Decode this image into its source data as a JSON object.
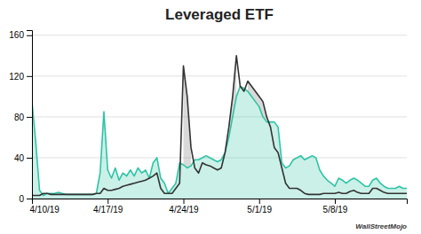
{
  "chart_data": {
    "type": "area",
    "title": "Leveraged ETF",
    "annotations": [
      "WallStreetMojo"
    ],
    "x": [
      0,
      1,
      2,
      3,
      4,
      5,
      6,
      7,
      8,
      9,
      10,
      11,
      12,
      13,
      14,
      15,
      16,
      17,
      18,
      19,
      20,
      21,
      22,
      23,
      24,
      25,
      26,
      27,
      28,
      29,
      30,
      31,
      32,
      33,
      34,
      35,
      36,
      37,
      38,
      39,
      40,
      41,
      42,
      43,
      44,
      45,
      46,
      47,
      48,
      49,
      50,
      51,
      52,
      53,
      54,
      55,
      56,
      57,
      58,
      59,
      60,
      61,
      62,
      63,
      64,
      65,
      66,
      67,
      68,
      69,
      70,
      71,
      72,
      73,
      74,
      75,
      76,
      77,
      78,
      79,
      80,
      81,
      82,
      83,
      84,
      85,
      86,
      87,
      88,
      89,
      90,
      91,
      92,
      93,
      94,
      95,
      96,
      97,
      98,
      99
    ],
    "xlim": [
      0,
      99
    ],
    "xticks": [
      {
        "value": 0,
        "label": "4/10/19"
      },
      {
        "value": 20,
        "label": "4/17/19"
      },
      {
        "value": 40,
        "label": "4/24/19"
      },
      {
        "value": 60,
        "label": "5/1/19"
      },
      {
        "value": 80,
        "label": "5/8/19"
      }
    ],
    "ylim": [
      0,
      165
    ],
    "yticks": [
      0,
      40,
      80,
      120,
      160
    ],
    "grid": true,
    "series": [
      {
        "type": "area",
        "color": "#2ec4a5",
        "values": [
          95,
          55,
          8,
          3,
          5,
          5,
          5,
          6,
          5,
          4,
          4,
          4,
          4,
          4,
          4,
          4,
          4,
          5,
          25,
          85,
          28,
          20,
          30,
          18,
          25,
          22,
          28,
          22,
          30,
          25,
          28,
          20,
          35,
          40,
          20,
          15,
          5,
          10,
          15,
          35,
          33,
          30,
          32,
          38,
          38,
          40,
          42,
          40,
          38,
          36,
          38,
          45,
          60,
          80,
          100,
          110,
          108,
          105,
          100,
          95,
          90,
          80,
          75,
          75,
          75,
          70,
          35,
          30,
          32,
          38,
          40,
          42,
          38,
          40,
          42,
          40,
          28,
          22,
          18,
          15,
          12,
          20,
          18,
          15,
          18,
          20,
          18,
          15,
          12,
          12,
          18,
          20,
          15,
          12,
          10,
          10,
          10,
          12,
          10,
          10
        ]
      },
      {
        "type": "line",
        "color": "#333333",
        "values": [
          3,
          3,
          3,
          5,
          5,
          4,
          4,
          4,
          4,
          4,
          4,
          4,
          4,
          4,
          4,
          4,
          4,
          5,
          5,
          10,
          8,
          8,
          9,
          10,
          12,
          13,
          14,
          15,
          16,
          17,
          18,
          20,
          22,
          25,
          10,
          5,
          5,
          5,
          10,
          15,
          130,
          100,
          50,
          30,
          25,
          35,
          33,
          32,
          30,
          28,
          30,
          45,
          70,
          100,
          140,
          110,
          105,
          115,
          110,
          105,
          100,
          95,
          80,
          70,
          50,
          45,
          30,
          15,
          10,
          10,
          10,
          8,
          5,
          4,
          4,
          4,
          4,
          5,
          5,
          5,
          5,
          6,
          5,
          5,
          7,
          8,
          6,
          5,
          5,
          5,
          10,
          10,
          8,
          6,
          5,
          5,
          5,
          5,
          5,
          5
        ]
      }
    ]
  }
}
